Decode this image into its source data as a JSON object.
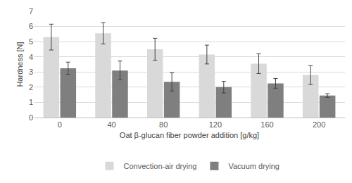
{
  "chart_data": {
    "type": "bar",
    "x_label": "Oat β-glucan fiber powder addition [g/kg]",
    "y_label": "Hardness [N]",
    "categories": [
      "0",
      "40",
      "80",
      "120",
      "160",
      "200"
    ],
    "series": [
      {
        "name": "Convection-air drying",
        "color": "#d9d9d9",
        "values": [
          5.3,
          5.55,
          4.5,
          4.15,
          3.55,
          2.8
        ],
        "errors": [
          0.85,
          0.7,
          0.72,
          0.62,
          0.65,
          0.62
        ]
      },
      {
        "name": "Vacuum drying",
        "color": "#7f7f7f",
        "values": [
          3.25,
          3.1,
          2.35,
          2.0,
          2.25,
          1.45
        ],
        "errors": [
          0.4,
          0.62,
          0.6,
          0.38,
          0.32,
          0.12
        ]
      }
    ],
    "ylim": [
      0,
      7
    ],
    "yticks": [
      0,
      1,
      2,
      3,
      4,
      5,
      6,
      7
    ],
    "grid": true,
    "legend": "bottom"
  }
}
